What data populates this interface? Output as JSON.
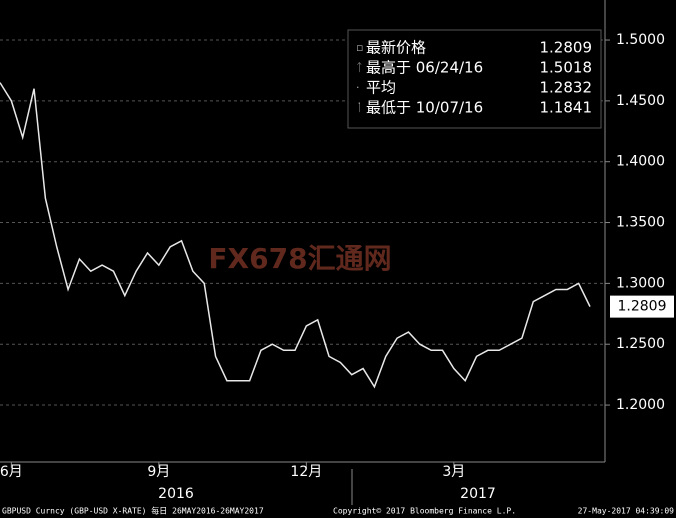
{
  "chart_data": {
    "type": "line",
    "watermark": "FX678汇通网",
    "categories": [
      null,
      "6月",
      null,
      null,
      null,
      null,
      null,
      null,
      null,
      null,
      null,
      null,
      null,
      null,
      "9月",
      null,
      null,
      null,
      null,
      null,
      null,
      null,
      null,
      null,
      null,
      null,
      null,
      "12月",
      null,
      null,
      null,
      null,
      null,
      null,
      null,
      null,
      null,
      null,
      null,
      null,
      "3月",
      null,
      null,
      null,
      null,
      null,
      null,
      null,
      null,
      null,
      null,
      null,
      null
    ],
    "x_groups": [
      "2016",
      "2017"
    ],
    "series": [
      {
        "name": "GBPUSD",
        "color": "#e8e8e8",
        "values": [
          1.465,
          1.45,
          1.42,
          1.46,
          1.37,
          1.33,
          1.295,
          1.32,
          1.31,
          1.315,
          1.31,
          1.29,
          1.31,
          1.325,
          1.315,
          1.33,
          1.335,
          1.31,
          1.3,
          1.24,
          1.22,
          1.22,
          1.22,
          1.245,
          1.25,
          1.245,
          1.245,
          1.265,
          1.27,
          1.24,
          1.235,
          1.225,
          1.23,
          1.215,
          1.24,
          1.255,
          1.26,
          1.25,
          1.245,
          1.245,
          1.23,
          1.22,
          1.24,
          1.245,
          1.245,
          1.25,
          1.255,
          1.285,
          1.29,
          1.295,
          1.295,
          1.3,
          1.2809
        ]
      }
    ],
    "legend": [
      {
        "label": "最新价格",
        "value": 1.2809
      },
      {
        "label": "最高于 06/24/16",
        "value": 1.5018
      },
      {
        "label": "平均",
        "value": 1.2832
      },
      {
        "label": "最低于 10/07/16",
        "value": 1.1841
      }
    ],
    "ylim": [
      1.1532,
      1.5329
    ],
    "yticks": [
      {
        "value": 1.2,
        "label": "1.2000"
      },
      {
        "value": 1.25,
        "label": "1.2500"
      },
      {
        "value": 1.3,
        "label": "1.3000"
      },
      {
        "value": 1.35,
        "label": "1.3500"
      },
      {
        "value": 1.4,
        "label": "1.4000"
      },
      {
        "value": 1.45,
        "label": "1.4500"
      },
      {
        "value": 1.5,
        "label": "1.5000"
      }
    ],
    "grid": true,
    "footer": {
      "left": "GBPUSD Curncy (GBP-USD X-RATE)  每日 26MAY2016-26MAY2017",
      "center": "Copyright© 2017 Bloomberg Finance L.P.",
      "right": "27-May-2017 04:39:09"
    }
  }
}
